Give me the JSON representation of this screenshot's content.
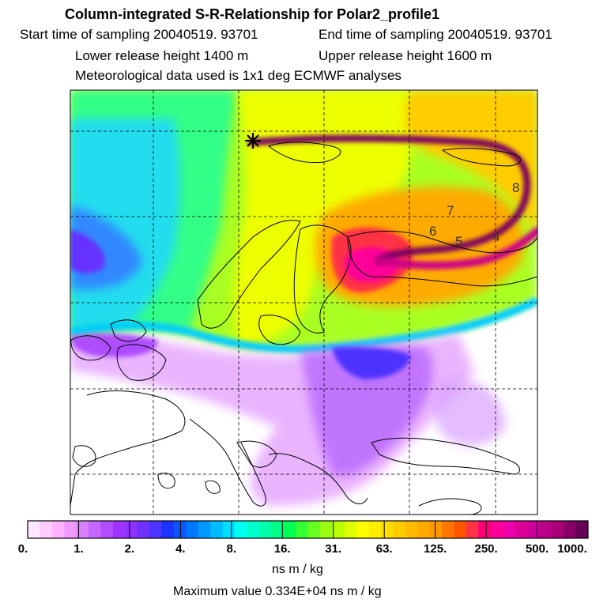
{
  "header": {
    "title": "Column-integrated S-R-Relationship for Polar2_profile1",
    "start_label": "Start time of sampling 20040519. 93701",
    "end_label": "End time of sampling 20040519. 93701",
    "lower_label": "Lower release height 1400 m",
    "upper_label": "Upper release height 1600 m",
    "met_label": "Meteorological data used is 1x1 deg ECMWF analyses"
  },
  "map": {
    "contour_labels": [
      "8",
      "7",
      "6",
      "5",
      "4"
    ],
    "release_marker": "release-star-icon"
  },
  "colorbar": {
    "tick_labels": [
      "0.",
      "1.",
      "2.",
      "4.",
      "8.",
      "16.",
      "31.",
      "63.",
      "125.",
      "250.",
      "500.",
      "1000."
    ],
    "segment_colors": [
      "#ffe6ff",
      "#ffccff",
      "#ffb3ff",
      "#f099ff",
      "#d980ff",
      "#c566ff",
      "#b24dff",
      "#a033ff",
      "#8c33ff",
      "#7033ff",
      "#4d33ff",
      "#1a33ff",
      "#0d55ff",
      "#0077ff",
      "#0099ff",
      "#00bbff",
      "#00ddff",
      "#00ffee",
      "#00ffcc",
      "#00ffaa",
      "#00ff88",
      "#00ff55",
      "#33ff33",
      "#66ff22",
      "#99ff11",
      "#bbff00",
      "#ddff00",
      "#ffff00",
      "#ffee00",
      "#ffdd00",
      "#ffcc00",
      "#ffbb00",
      "#ffaa00",
      "#ff9900",
      "#ff7700",
      "#ff5500",
      "#ff3344",
      "#ff0077",
      "#ff0099",
      "#ee00aa",
      "#dd0099",
      "#cc0099",
      "#bb0088",
      "#aa0077",
      "#880066",
      "#660055"
    ],
    "unit_label": "ns m / kg"
  },
  "footer": {
    "max_label": "Maximum value  0.334E+04 ns m / kg"
  }
}
